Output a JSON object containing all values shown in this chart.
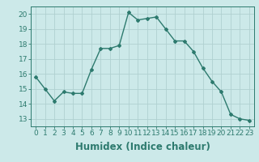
{
  "x": [
    0,
    1,
    2,
    3,
    4,
    5,
    6,
    7,
    8,
    9,
    10,
    11,
    12,
    13,
    14,
    15,
    16,
    17,
    18,
    19,
    20,
    21,
    22,
    23
  ],
  "y": [
    15.8,
    15.0,
    14.2,
    14.8,
    14.7,
    14.7,
    16.3,
    17.7,
    17.7,
    17.9,
    20.1,
    19.6,
    19.7,
    19.8,
    19.0,
    18.2,
    18.2,
    17.5,
    16.4,
    15.5,
    14.8,
    13.3,
    13.0,
    12.9
  ],
  "line_color": "#2d7a6e",
  "marker": "D",
  "marker_size": 2.0,
  "bg_color": "#cce9e9",
  "grid_color": "#b0d0d0",
  "xlabel": "Humidex (Indice chaleur)",
  "ylim": [
    12.5,
    20.5
  ],
  "xlim": [
    -0.5,
    23.5
  ],
  "yticks": [
    13,
    14,
    15,
    16,
    17,
    18,
    19,
    20
  ],
  "xticks": [
    0,
    1,
    2,
    3,
    4,
    5,
    6,
    7,
    8,
    9,
    10,
    11,
    12,
    13,
    14,
    15,
    16,
    17,
    18,
    19,
    20,
    21,
    22,
    23
  ],
  "tick_label_size": 6.5,
  "xlabel_size": 8.5,
  "line_width": 1.0
}
